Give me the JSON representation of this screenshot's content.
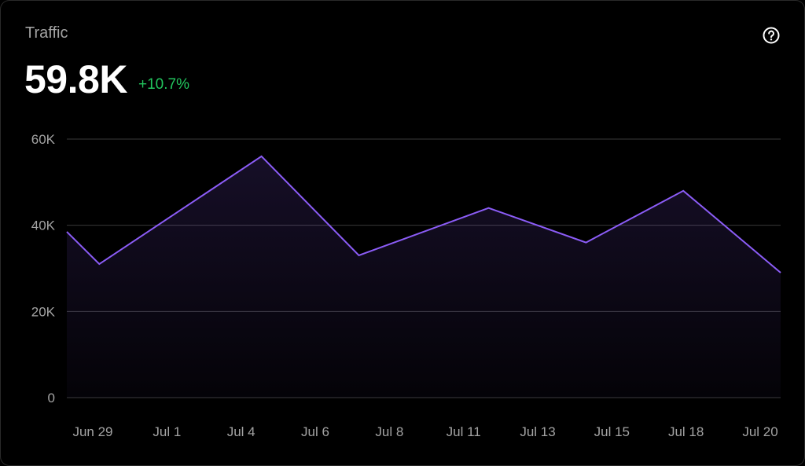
{
  "card": {
    "title": "Traffic",
    "value": "59.8K",
    "delta": "+10.7%",
    "help_icon": "question-circle-icon"
  },
  "colors": {
    "background": "#000000",
    "line": "#8b5cf6",
    "positive": "#22c55e",
    "grid": "#3a3a3a",
    "text_muted": "#a3a3a3"
  },
  "chart_data": {
    "type": "area",
    "title": "",
    "xlabel": "",
    "ylabel": "",
    "ylim": [
      0,
      60000
    ],
    "y_ticks": [
      {
        "value": 60000,
        "label": "60K"
      },
      {
        "value": 40000,
        "label": "40K"
      },
      {
        "value": 20000,
        "label": "20K"
      },
      {
        "value": 0,
        "label": "0"
      }
    ],
    "x_tick_labels": [
      "Jun 29",
      "Jul 1",
      "Jul 4",
      "Jul 6",
      "Jul 8",
      "Jul 11",
      "Jul 13",
      "Jul 15",
      "Jul 18",
      "Jul 20"
    ],
    "x_range": [
      "Jun 28",
      "Jul 20"
    ],
    "grid": true,
    "series": [
      {
        "x": [
          "Jun 28",
          "Jun 29",
          "Jul 4",
          "Jul 7",
          "Jul 11",
          "Jul 14",
          "Jul 17",
          "Jul 20"
        ],
        "values": [
          38500,
          31000,
          56000,
          33000,
          44000,
          36000,
          48000,
          29000
        ]
      }
    ]
  }
}
